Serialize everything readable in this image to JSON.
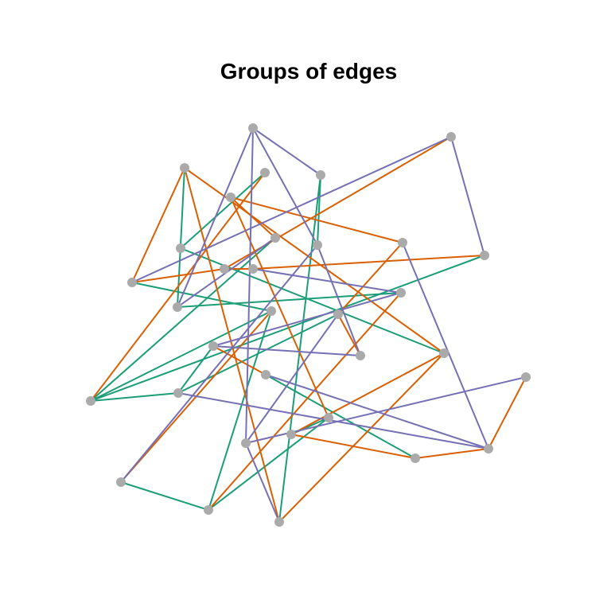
{
  "title": "Groups of edges",
  "colors": {
    "group_1": "#1b9e77",
    "group_2": "#d95f02",
    "group_3": "#7570b3",
    "node": "#aaaaaa"
  },
  "nodes": [
    {
      "id": "n1"
    },
    {
      "id": "n2"
    },
    {
      "id": "n3"
    },
    {
      "id": "n4"
    },
    {
      "id": "n5"
    },
    {
      "id": "n6"
    },
    {
      "id": "n7"
    },
    {
      "id": "n8"
    },
    {
      "id": "n9"
    },
    {
      "id": "n10"
    },
    {
      "id": "n11"
    },
    {
      "id": "n12"
    },
    {
      "id": "n13"
    },
    {
      "id": "n14"
    },
    {
      "id": "n15"
    },
    {
      "id": "n16"
    },
    {
      "id": "n17"
    },
    {
      "id": "n18"
    },
    {
      "id": "n19"
    },
    {
      "id": "n20"
    },
    {
      "id": "n21"
    },
    {
      "id": "n22"
    },
    {
      "id": "n23"
    },
    {
      "id": "n24"
    },
    {
      "id": "n25"
    },
    {
      "id": "n26"
    },
    {
      "id": "n27"
    },
    {
      "id": "n28"
    },
    {
      "id": "n29"
    },
    {
      "id": "n30"
    },
    {
      "id": "n31"
    },
    {
      "id": "n32"
    },
    {
      "id": "n33"
    }
  ],
  "edges": [
    {
      "from": "n7",
      "to": "n30",
      "group": "group_1"
    },
    {
      "from": "n7",
      "to": "n3",
      "group": "group_1"
    },
    {
      "from": "n12",
      "to": "n26",
      "group": "group_1"
    },
    {
      "from": "n12",
      "to": "n2",
      "group": "group_1"
    },
    {
      "from": "n13",
      "to": "n23",
      "group": "group_1"
    },
    {
      "from": "n13",
      "to": "n18",
      "group": "group_1"
    },
    {
      "from": "n18",
      "to": "n17",
      "group": "group_1"
    },
    {
      "from": "n18",
      "to": "n31",
      "group": "group_1"
    },
    {
      "from": "n19",
      "to": "n23",
      "group": "group_1"
    },
    {
      "from": "n4",
      "to": "n9",
      "group": "group_1"
    },
    {
      "from": "n4",
      "to": "n24",
      "group": "group_1"
    },
    {
      "from": "n17",
      "to": "n14",
      "group": "group_1"
    },
    {
      "from": "n15",
      "to": "n17",
      "group": "group_1"
    },
    {
      "from": "n20",
      "to": "n22",
      "group": "group_1"
    },
    {
      "from": "n20",
      "to": "n23",
      "group": "group_1"
    },
    {
      "from": "n16",
      "to": "n28",
      "group": "group_1"
    },
    {
      "from": "n6",
      "to": "n18",
      "group": "group_1"
    },
    {
      "from": "n11",
      "to": "n13",
      "group": "group_1"
    },
    {
      "from": "n5",
      "to": "n6",
      "group": "group_2"
    },
    {
      "from": "n5",
      "to": "n27",
      "group": "group_2"
    },
    {
      "from": "n5",
      "to": "n20",
      "group": "group_2"
    },
    {
      "from": "n8",
      "to": "n10",
      "group": "group_2"
    },
    {
      "from": "n8",
      "to": "n11",
      "group": "group_2"
    },
    {
      "from": "n8",
      "to": "n32",
      "group": "group_2"
    },
    {
      "from": "n10",
      "to": "n31",
      "group": "group_2"
    },
    {
      "from": "n13",
      "to": "n19",
      "group": "group_2"
    },
    {
      "from": "n3",
      "to": "n18",
      "group": "group_2"
    },
    {
      "from": "n2",
      "to": "n11",
      "group": "group_2"
    },
    {
      "from": "n2",
      "to": "n24",
      "group": "group_2"
    },
    {
      "from": "n2",
      "to": "n30",
      "group": "group_2"
    },
    {
      "from": "n14",
      "to": "n27",
      "group": "group_2"
    },
    {
      "from": "n14",
      "to": "n25",
      "group": "group_2"
    },
    {
      "from": "n24",
      "to": "n30",
      "group": "group_2"
    },
    {
      "from": "n22",
      "to": "n30",
      "group": "group_2"
    },
    {
      "from": "n22",
      "to": "n28",
      "group": "group_2"
    },
    {
      "from": "n23",
      "to": "n26",
      "group": "group_2"
    },
    {
      "from": "n28",
      "to": "n29",
      "group": "group_2"
    },
    {
      "from": "n29",
      "to": "n33",
      "group": "group_2"
    },
    {
      "from": "n16",
      "to": "n15",
      "group": "group_2"
    },
    {
      "from": "n1",
      "to": "n4",
      "group": "group_3"
    },
    {
      "from": "n1",
      "to": "n9",
      "group": "group_3"
    },
    {
      "from": "n1",
      "to": "n12",
      "group": "group_3"
    },
    {
      "from": "n1",
      "to": "n21",
      "group": "group_3"
    },
    {
      "from": "n9",
      "to": "n25",
      "group": "group_3"
    },
    {
      "from": "n10",
      "to": "n26",
      "group": "group_3"
    },
    {
      "from": "n14",
      "to": "n21",
      "group": "group_3"
    },
    {
      "from": "n25",
      "to": "n15",
      "group": "group_3"
    },
    {
      "from": "n11",
      "to": "n32",
      "group": "group_3"
    },
    {
      "from": "n6",
      "to": "n12",
      "group": "group_3"
    },
    {
      "from": "n31",
      "to": "n32",
      "group": "group_3"
    },
    {
      "from": "n9",
      "to": "n19",
      "group": "group_3"
    },
    {
      "from": "n15",
      "to": "n26",
      "group": "group_3"
    },
    {
      "from": "n17",
      "to": "n29",
      "group": "group_3"
    },
    {
      "from": "n29",
      "to": "n27",
      "group": "group_3"
    },
    {
      "from": "n29",
      "to": "n16",
      "group": "group_3"
    },
    {
      "from": "n21",
      "to": "n24",
      "group": "group_3"
    },
    {
      "from": "n33",
      "to": "n21",
      "group": "group_3"
    }
  ]
}
